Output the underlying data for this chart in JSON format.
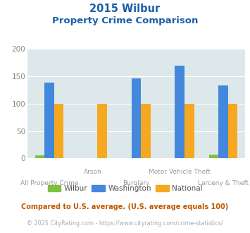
{
  "title_line1": "2015 Wilbur",
  "title_line2": "Property Crime Comparison",
  "categories": [
    "All Property Crime",
    "Arson",
    "Burglary",
    "Motor Vehicle Theft",
    "Larceny & Theft"
  ],
  "cat_labels_top": [
    "",
    "Arson",
    "",
    "Motor Vehicle Theft",
    ""
  ],
  "cat_labels_bot": [
    "All Property Crime",
    "",
    "Burglary",
    "",
    "Larceny & Theft"
  ],
  "wilbur": [
    6,
    0,
    0,
    0,
    7
  ],
  "washington": [
    139,
    0,
    146,
    170,
    133
  ],
  "national": [
    100,
    100,
    100,
    100,
    100
  ],
  "wilbur_color": "#80c040",
  "washington_color": "#4488dd",
  "national_color": "#f5a820",
  "bg_color": "#dde8ea",
  "title_color": "#1a5fa8",
  "xlabel_color": "#999999",
  "ylabel_color": "#888888",
  "ylim": [
    0,
    200
  ],
  "yticks": [
    0,
    50,
    100,
    150,
    200
  ],
  "footnote1": "Compared to U.S. average. (U.S. average equals 100)",
  "footnote2": "© 2025 CityRating.com - https://www.cityrating.com/crime-statistics/",
  "footnote1_color": "#c05800",
  "footnote2_color": "#aaaaaa",
  "legend_labels": [
    "Wilbur",
    "Washington",
    "National"
  ]
}
